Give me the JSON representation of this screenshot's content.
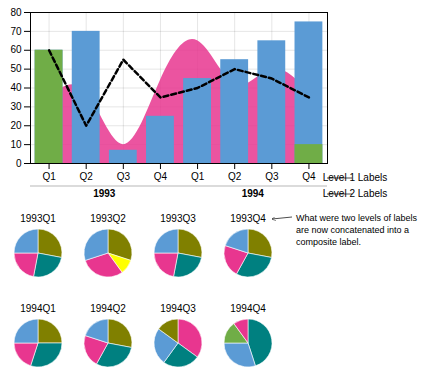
{
  "chart_data": [
    {
      "type": "bar",
      "categories": [
        "Q1",
        "Q2",
        "Q3",
        "Q4",
        "Q1",
        "Q2",
        "Q3",
        "Q4"
      ],
      "group_labels": [
        "1993",
        "1994"
      ],
      "annotations": [
        "Level 1 Labels",
        "Level 2 Labels"
      ],
      "series": [
        {
          "type": "area",
          "color": "#E8368F",
          "values": [
            35,
            38,
            10,
            44,
            65,
            42,
            50,
            38
          ]
        },
        {
          "type": "bar",
          "color": "#5B9BD5",
          "values": [
            60,
            70,
            7,
            25,
            45,
            55,
            65,
            75
          ]
        },
        {
          "type": "bar",
          "color": "#70AD47",
          "values": [
            60,
            0,
            0,
            0,
            0,
            0,
            0,
            10
          ]
        },
        {
          "type": "line",
          "color": "#000000",
          "line_style": "dashed",
          "values": [
            60,
            20,
            55,
            35,
            40,
            50,
            45,
            35
          ]
        }
      ],
      "ylim": [
        0,
        80
      ],
      "yticks": [
        0,
        10,
        20,
        30,
        40,
        50,
        60,
        70,
        80
      ],
      "grid": true
    },
    {
      "type": "pie",
      "title": "1993Q1",
      "values": [
        0.28,
        0.25,
        0.22,
        0.25
      ],
      "colors": [
        "#808000",
        "#008080",
        "#E8368F",
        "#5B9BD5"
      ]
    },
    {
      "type": "pie",
      "title": "1993Q2",
      "values": [
        0.3,
        0.1,
        0.3,
        0.3
      ],
      "colors": [
        "#808000",
        "#FFFF00",
        "#E8368F",
        "#5B9BD5"
      ]
    },
    {
      "type": "pie",
      "title": "1993Q3",
      "values": [
        0.28,
        0.25,
        0.22,
        0.25
      ],
      "colors": [
        "#808000",
        "#008080",
        "#E8368F",
        "#5B9BD5"
      ]
    },
    {
      "type": "pie",
      "title": "1993Q4",
      "values": [
        0.28,
        0.3,
        0.22,
        0.2
      ],
      "colors": [
        "#808000",
        "#008080",
        "#E8368F",
        "#5B9BD5"
      ],
      "annotation": "What were two levels of labels\nare now concatenated into a\ncomposite label."
    },
    {
      "type": "pie",
      "title": "1994Q1",
      "values": [
        0.25,
        0.3,
        0.2,
        0.25
      ],
      "colors": [
        "#808000",
        "#008080",
        "#E8368F",
        "#5B9BD5"
      ]
    },
    {
      "type": "pie",
      "title": "1994Q2",
      "values": [
        0.28,
        0.3,
        0.22,
        0.2
      ],
      "colors": [
        "#808000",
        "#008080",
        "#E8368F",
        "#5B9BD5"
      ]
    },
    {
      "type": "pie",
      "title": "1994Q3",
      "values": [
        0.35,
        0.25,
        0.25,
        0.15
      ],
      "colors": [
        "#E8368F",
        "#008080",
        "#5B9BD5",
        "#808000"
      ]
    },
    {
      "type": "pie",
      "title": "1994Q4",
      "values": [
        0.45,
        0.3,
        0.15,
        0.1
      ],
      "colors": [
        "#008080",
        "#5B9BD5",
        "#70AD47",
        "#E8368F"
      ]
    }
  ]
}
